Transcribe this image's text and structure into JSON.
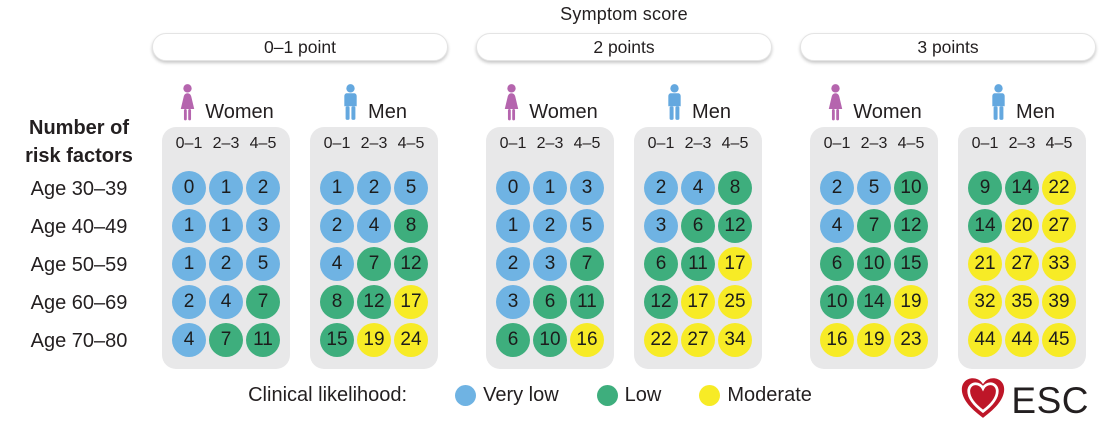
{
  "header": {
    "title": "Symptom score"
  },
  "colors": {
    "very_low": "#6FB3E3",
    "low": "#3EAE7D",
    "moderate": "#F7EB26",
    "panel_bg": "#E8E8E9",
    "text": "#231F20",
    "women_icon": "#B565AE",
    "men_icon": "#64A8DF",
    "logo_red": "#BE1628"
  },
  "legend": {
    "label": "Clinical likelihood:",
    "items": [
      {
        "label": "Very low",
        "level": "very_low"
      },
      {
        "label": "Low",
        "level": "low"
      },
      {
        "label": "Moderate",
        "level": "moderate"
      }
    ]
  },
  "logo": {
    "text": "ESC"
  },
  "chart_data": {
    "type": "table",
    "title": "Symptom score",
    "row_label_header": [
      "Number of",
      "risk factors"
    ],
    "row_labels": [
      "Age 30–39",
      "Age 40–49",
      "Age 50–59",
      "Age 60–69",
      "Age 70–80"
    ],
    "col_labels": [
      "0–1",
      "2–3",
      "4–5"
    ],
    "col_axis_label": "Number of risk factors",
    "levels_legend": {
      "very_low": "Very low",
      "low": "Low",
      "moderate": "Moderate"
    },
    "panels": [
      {
        "symptom_score": "0–1 point",
        "groups": [
          {
            "sex": "Women",
            "values": [
              [
                0,
                1,
                2
              ],
              [
                1,
                1,
                3
              ],
              [
                1,
                2,
                5
              ],
              [
                2,
                4,
                7
              ],
              [
                4,
                7,
                11
              ]
            ],
            "levels": [
              [
                "very_low",
                "very_low",
                "very_low"
              ],
              [
                "very_low",
                "very_low",
                "very_low"
              ],
              [
                "very_low",
                "very_low",
                "very_low"
              ],
              [
                "very_low",
                "very_low",
                "low"
              ],
              [
                "very_low",
                "low",
                "low"
              ]
            ]
          },
          {
            "sex": "Men",
            "values": [
              [
                1,
                2,
                5
              ],
              [
                2,
                4,
                8
              ],
              [
                4,
                7,
                12
              ],
              [
                8,
                12,
                17
              ],
              [
                15,
                19,
                24
              ]
            ],
            "levels": [
              [
                "very_low",
                "very_low",
                "very_low"
              ],
              [
                "very_low",
                "very_low",
                "low"
              ],
              [
                "very_low",
                "low",
                "low"
              ],
              [
                "low",
                "low",
                "moderate"
              ],
              [
                "low",
                "moderate",
                "moderate"
              ]
            ]
          }
        ]
      },
      {
        "symptom_score": "2 points",
        "groups": [
          {
            "sex": "Women",
            "values": [
              [
                0,
                1,
                3
              ],
              [
                1,
                2,
                5
              ],
              [
                2,
                3,
                7
              ],
              [
                3,
                6,
                11
              ],
              [
                6,
                10,
                16
              ]
            ],
            "levels": [
              [
                "very_low",
                "very_low",
                "very_low"
              ],
              [
                "very_low",
                "very_low",
                "very_low"
              ],
              [
                "very_low",
                "very_low",
                "low"
              ],
              [
                "very_low",
                "low",
                "low"
              ],
              [
                "low",
                "low",
                "moderate"
              ]
            ]
          },
          {
            "sex": "Men",
            "values": [
              [
                2,
                4,
                8
              ],
              [
                3,
                6,
                12
              ],
              [
                6,
                11,
                17
              ],
              [
                12,
                17,
                25
              ],
              [
                22,
                27,
                34
              ]
            ],
            "levels": [
              [
                "very_low",
                "very_low",
                "low"
              ],
              [
                "very_low",
                "low",
                "low"
              ],
              [
                "low",
                "low",
                "moderate"
              ],
              [
                "low",
                "moderate",
                "moderate"
              ],
              [
                "moderate",
                "moderate",
                "moderate"
              ]
            ]
          }
        ]
      },
      {
        "symptom_score": "3 points",
        "groups": [
          {
            "sex": "Women",
            "values": [
              [
                2,
                5,
                10
              ],
              [
                4,
                7,
                12
              ],
              [
                6,
                10,
                15
              ],
              [
                10,
                14,
                19
              ],
              [
                16,
                19,
                23
              ]
            ],
            "levels": [
              [
                "very_low",
                "very_low",
                "low"
              ],
              [
                "very_low",
                "low",
                "low"
              ],
              [
                "low",
                "low",
                "low"
              ],
              [
                "low",
                "low",
                "moderate"
              ],
              [
                "moderate",
                "moderate",
                "moderate"
              ]
            ]
          },
          {
            "sex": "Men",
            "values": [
              [
                9,
                14,
                22
              ],
              [
                14,
                20,
                27
              ],
              [
                21,
                27,
                33
              ],
              [
                32,
                35,
                39
              ],
              [
                44,
                44,
                45
              ]
            ],
            "levels": [
              [
                "low",
                "low",
                "moderate"
              ],
              [
                "low",
                "moderate",
                "moderate"
              ],
              [
                "moderate",
                "moderate",
                "moderate"
              ],
              [
                "moderate",
                "moderate",
                "moderate"
              ],
              [
                "moderate",
                "moderate",
                "moderate"
              ]
            ]
          }
        ]
      }
    ]
  }
}
